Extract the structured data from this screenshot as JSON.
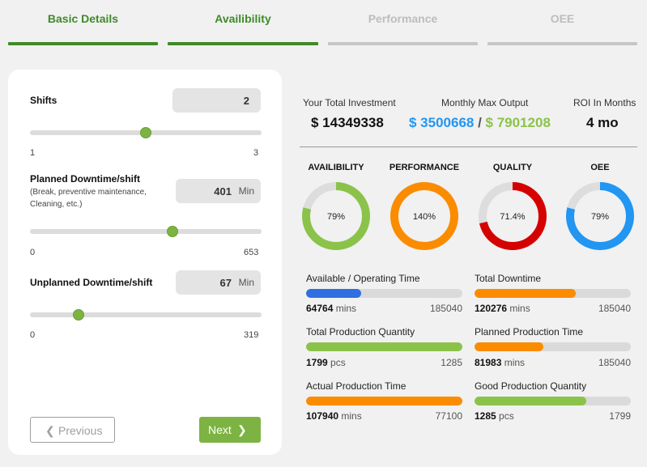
{
  "tabs": [
    {
      "label": "Basic Details",
      "state": "active"
    },
    {
      "label": "Availibility",
      "state": "active"
    },
    {
      "label": "Performance",
      "state": "inactive"
    },
    {
      "label": "OEE",
      "state": "inactive"
    }
  ],
  "form": {
    "shifts": {
      "label": "Shifts",
      "value": "2",
      "min": 1,
      "max": 3,
      "min_label": "1",
      "max_label": "3"
    },
    "planned": {
      "label": "Planned Downtime/shift",
      "sub1": "(Break, preventive maintenance,",
      "sub2": "Cleaning, etc.)",
      "value": "401",
      "unit": "Min",
      "min": 0,
      "max": 653,
      "min_label": "0",
      "max_label": "653"
    },
    "unplanned": {
      "label": "Unplanned Downtime/shift",
      "value": "67",
      "unit": "Min",
      "min": 0,
      "max": 319,
      "min_label": "0",
      "max_label": "319"
    },
    "previous_label": "Previous",
    "next_label": "Next"
  },
  "summary": {
    "investment_label": "Your Total Investment",
    "investment_value": "$ 14349338",
    "output_label": "Monthly Max Output",
    "output_low": "$ 3500668",
    "output_sep": " / ",
    "output_high": "$ 7901208",
    "roi_label": "ROI In Months",
    "roi_value": "4 mo"
  },
  "gauges": [
    {
      "title": "AVAILIBILITY",
      "label": "79%",
      "fraction": 0.79,
      "color": "#8bc34a"
    },
    {
      "title": "PERFORMANCE",
      "label": "140%",
      "fraction": 1.0,
      "color": "#fb8c00"
    },
    {
      "title": "QUALITY",
      "label": "71.4%",
      "fraction": 0.714,
      "color": "#d50000"
    },
    {
      "title": "OEE",
      "label": "79%",
      "fraction": 0.79,
      "color": "#2196f3"
    }
  ],
  "metrics": [
    {
      "title": "Available / Operating Time",
      "value": "64764",
      "unit": "mins",
      "max": "185040",
      "fraction": 0.35,
      "color": "#2f6fe0"
    },
    {
      "title": "Total Downtime",
      "value": "120276",
      "unit": "mins",
      "max": "185040",
      "fraction": 0.65,
      "color": "#fb8c00"
    },
    {
      "title": "Total Production Quantity",
      "value": "1799",
      "unit": "pcs",
      "max": "1285",
      "fraction": 1.0,
      "color": "#8bc34a"
    },
    {
      "title": "Planned Production Time",
      "value": "81983",
      "unit": "mins",
      "max": "185040",
      "fraction": 0.443,
      "color": "#fb8c00"
    },
    {
      "title": "Actual Production Time",
      "value": "107940",
      "unit": "mins",
      "max": "77100",
      "fraction": 1.0,
      "color": "#fb8c00"
    },
    {
      "title": "Good Production Quantity",
      "value": "1285",
      "unit": "pcs",
      "max": "1799",
      "fraction": 0.714,
      "color": "#8bc34a"
    }
  ],
  "icons": {
    "previous": "chevron-left-icon",
    "next": "chevron-right-icon"
  }
}
